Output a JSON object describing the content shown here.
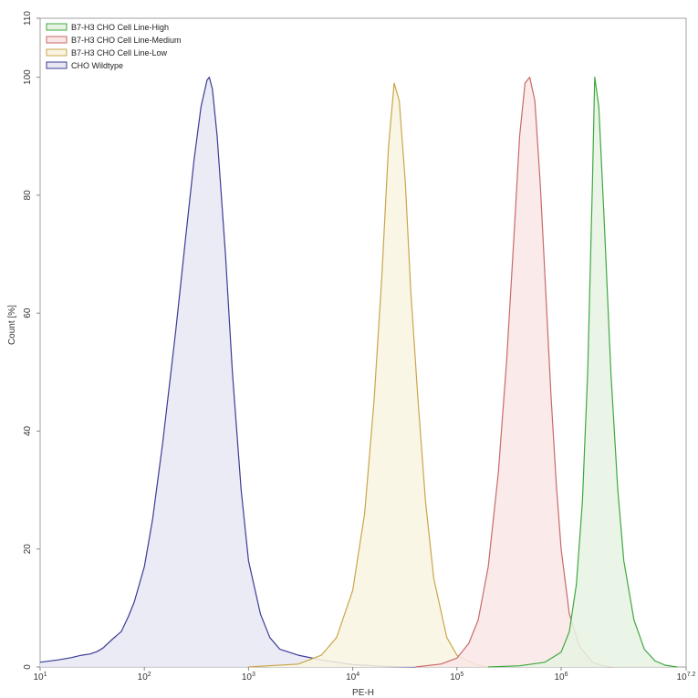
{
  "chart_data": {
    "type": "area",
    "xlabel": "PE-H",
    "ylabel": "Count [%]",
    "xscale": "log",
    "xlim": [
      10,
      15848932
    ],
    "ylim": [
      0,
      110
    ],
    "x_ticks": [
      {
        "value": 10,
        "base": "10",
        "exp": "1"
      },
      {
        "value": 100,
        "base": "10",
        "exp": "2"
      },
      {
        "value": 1000,
        "base": "10",
        "exp": "3"
      },
      {
        "value": 10000,
        "base": "10",
        "exp": "4"
      },
      {
        "value": 100000,
        "base": "10",
        "exp": "5"
      },
      {
        "value": 1000000,
        "base": "10",
        "exp": "6"
      },
      {
        "value": 15848932,
        "base": "10",
        "exp": "7.2"
      }
    ],
    "y_ticks": [
      "0",
      "20",
      "40",
      "60",
      "80",
      "100",
      "110"
    ],
    "legend_position": "top-left",
    "series": [
      {
        "name": "B7-H3 CHO Cell Line-High",
        "color": "#3fa83f",
        "fill": "#e6f3e3",
        "x": [
          200000,
          400000,
          700000,
          1000000,
          1200000,
          1400000,
          1600000,
          1800000,
          2000000,
          2100000,
          2300000,
          2600000,
          3000000,
          3500000,
          4000000,
          5000000,
          6300000,
          8000000,
          10000000,
          13000000
        ],
        "y": [
          0,
          0.2,
          0.8,
          2.5,
          6,
          14,
          28,
          50,
          82,
          100,
          95,
          75,
          50,
          30,
          18,
          8,
          3,
          1,
          0.3,
          0
        ]
      },
      {
        "name": "B7-H3 CHO Cell Line-Medium",
        "color": "#c86a6a",
        "fill": "#f9e6e6",
        "x": [
          40000,
          70000,
          100000,
          130000,
          160000,
          200000,
          250000,
          300000,
          350000,
          400000,
          450000,
          500000,
          560000,
          630000,
          710000,
          800000,
          900000,
          1000000,
          1200000,
          1500000,
          2000000,
          2500000,
          3000000
        ],
        "y": [
          0,
          0.5,
          1.5,
          4,
          8,
          17,
          33,
          52,
          72,
          90,
          99,
          100,
          96,
          82,
          64,
          46,
          31,
          20,
          9,
          3.5,
          0.8,
          0.2,
          0
        ]
      },
      {
        "name": "B7-H3 CHO Cell Line-Low",
        "color": "#c9a64a",
        "fill": "#f9f4e1",
        "x": [
          1000,
          3000,
          5000,
          7000,
          10000,
          13000,
          16000,
          19000,
          22000,
          25000,
          28000,
          32000,
          36000,
          42000,
          50000,
          60000,
          80000,
          100000,
          150000,
          200000
        ],
        "y": [
          0,
          0.5,
          2,
          5,
          13,
          26,
          45,
          66,
          88,
          99,
          96,
          82,
          64,
          46,
          28,
          15,
          5,
          2,
          0.4,
          0
        ]
      },
      {
        "name": "CHO Wildtype",
        "color": "#3c3c96",
        "fill": "#e6e7f3",
        "x": [
          10,
          15,
          20,
          25,
          30,
          35,
          40,
          50,
          60,
          70,
          80,
          100,
          120,
          150,
          200,
          250,
          300,
          350,
          400,
          420,
          450,
          500,
          600,
          700,
          850,
          1000,
          1300,
          1600,
          2000,
          3000,
          5000,
          7000,
          10000,
          20000,
          40000
        ],
        "y": [
          0.8,
          1.2,
          1.6,
          2,
          2.2,
          2.6,
          3.2,
          4.8,
          6,
          8.5,
          11,
          17,
          25,
          38,
          57,
          73,
          86,
          95,
          99.5,
          100,
          98,
          90,
          70,
          50,
          30,
          18,
          9,
          5,
          3,
          2,
          1.2,
          0.8,
          0.4,
          0.1,
          0
        ]
      }
    ]
  }
}
